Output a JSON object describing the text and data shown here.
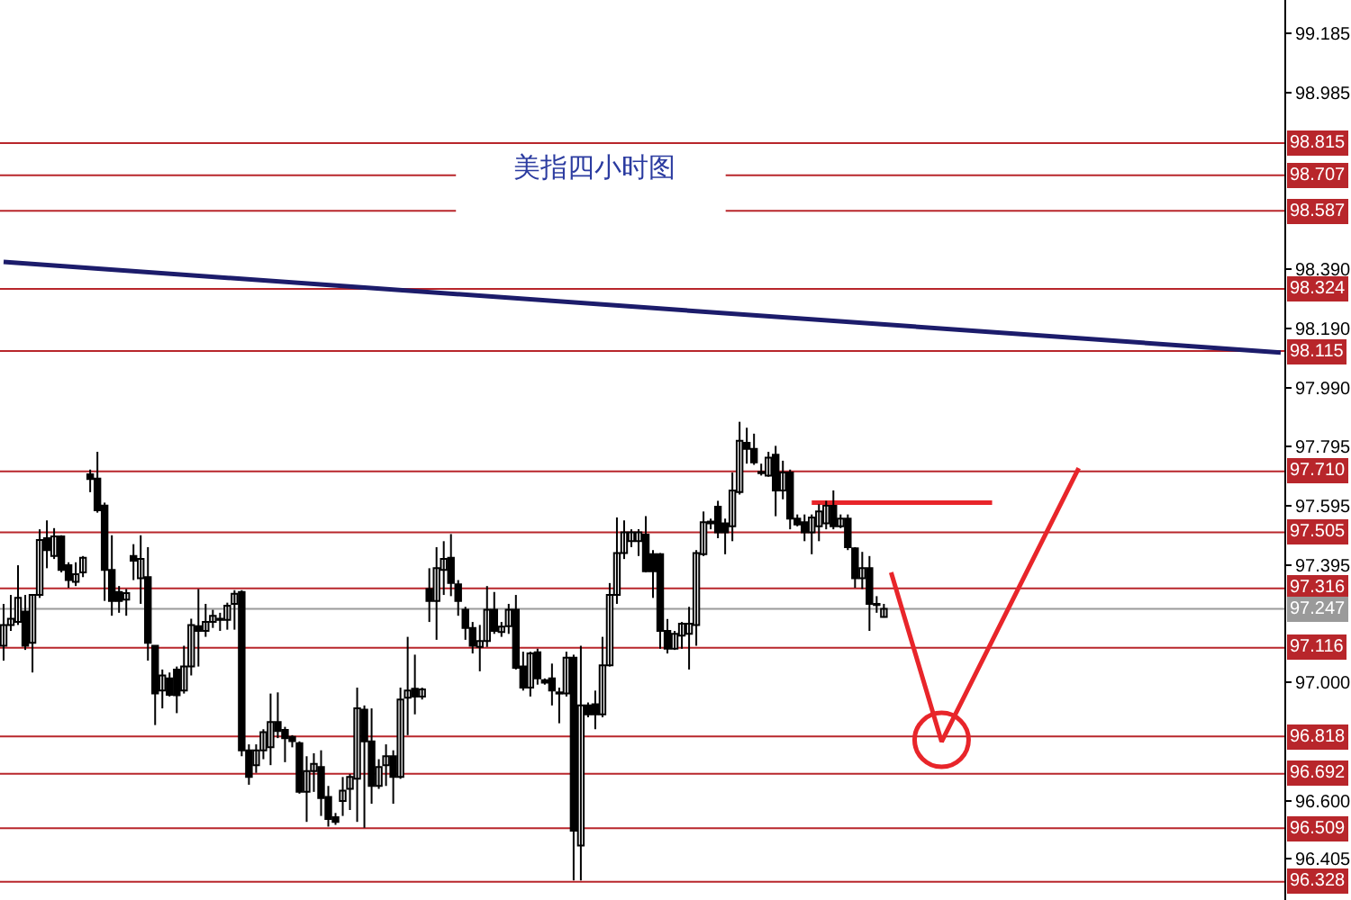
{
  "chart_data": {
    "type": "candlestick",
    "title": "美指四小时图",
    "categories": [
      null,
      null,
      null,
      null,
      null,
      null,
      null,
      null,
      null,
      null,
      null,
      null,
      null,
      null,
      null,
      null,
      null,
      null,
      null,
      null,
      null,
      null,
      null,
      null,
      null,
      null,
      null,
      null,
      null,
      null,
      null,
      null,
      null,
      null,
      null,
      null,
      null,
      null,
      null,
      null,
      null,
      null,
      null,
      null,
      null,
      null,
      null,
      null,
      null,
      null,
      null,
      null,
      null,
      null,
      null,
      null,
      null,
      null,
      null,
      null,
      null,
      null,
      null,
      null,
      null,
      null,
      null,
      null,
      null,
      null,
      null,
      null,
      null,
      null,
      null,
      null,
      null,
      null,
      null,
      null,
      null,
      null,
      null,
      null,
      null,
      null,
      null,
      null,
      null,
      null,
      null,
      null,
      null,
      null,
      null,
      null,
      null,
      null,
      null,
      null,
      null,
      null,
      null,
      null,
      null,
      null,
      null,
      null,
      null,
      null,
      null,
      null,
      null,
      null,
      null,
      null,
      null,
      null,
      null,
      null,
      null,
      null,
      null,
      null,
      null,
      null,
      null,
      null,
      null,
      null,
      null,
      null,
      null,
      null,
      null,
      null,
      null,
      null,
      null,
      null,
      null,
      null,
      null,
      null,
      null,
      null,
      null,
      null,
      null,
      null,
      null,
      null,
      null,
      null,
      null,
      null,
      null,
      null,
      null,
      null,
      null,
      null,
      null,
      null,
      null,
      null,
      null,
      null,
      null,
      null,
      null,
      null,
      null,
      null,
      null,
      null,
      null,
      null
    ],
    "ohlc": [
      [
        97.123,
        97.264,
        97.073,
        97.193
      ],
      [
        97.193,
        97.294,
        97.173,
        97.214
      ],
      [
        97.203,
        97.394,
        97.193,
        97.284
      ],
      [
        97.238,
        97.294,
        97.109,
        97.123
      ],
      [
        97.133,
        97.294,
        97.033,
        97.294
      ],
      [
        97.294,
        97.515,
        97.284,
        97.479
      ],
      [
        97.485,
        97.545,
        97.384,
        97.445
      ],
      [
        97.425,
        97.519,
        97.415,
        97.491
      ],
      [
        97.491,
        97.495,
        97.37,
        97.378
      ],
      [
        97.394,
        97.404,
        97.318,
        97.344
      ],
      [
        97.338,
        97.404,
        97.324,
        97.364
      ],
      [
        97.37,
        97.425,
        97.354,
        97.419
      ],
      [
        97.7,
        97.716,
        97.64,
        97.684
      ],
      [
        97.686,
        97.776,
        97.571,
        97.579
      ],
      [
        97.595,
        97.605,
        97.274,
        97.378
      ],
      [
        97.378,
        97.495,
        97.224,
        97.274
      ],
      [
        97.304,
        97.324,
        97.234,
        97.274
      ],
      [
        97.278,
        97.314,
        97.224,
        97.3
      ],
      [
        97.425,
        97.465,
        97.344,
        97.409
      ],
      [
        97.35,
        97.495,
        97.264,
        97.415
      ],
      [
        97.354,
        97.455,
        97.073,
        97.133
      ],
      [
        97.123,
        97.123,
        96.856,
        96.962
      ],
      [
        96.972,
        97.043,
        96.912,
        97.023
      ],
      [
        97.013,
        97.033,
        96.952,
        96.958
      ],
      [
        97.043,
        97.053,
        96.896,
        96.956
      ],
      [
        96.972,
        97.123,
        96.962,
        97.053
      ],
      [
        97.053,
        97.214,
        97.023,
        97.193
      ],
      [
        97.189,
        97.314,
        97.053,
        97.173
      ],
      [
        97.173,
        97.264,
        97.153,
        97.203
      ],
      [
        97.203,
        97.244,
        97.183,
        97.224
      ],
      [
        97.21,
        97.234,
        97.173,
        97.214
      ],
      [
        97.21,
        97.268,
        97.177,
        97.258
      ],
      [
        97.264,
        97.31,
        97.177,
        97.298
      ],
      [
        97.304,
        97.31,
        96.751,
        96.771
      ],
      [
        96.771,
        96.791,
        96.655,
        96.681
      ],
      [
        96.721,
        96.791,
        96.695,
        96.771
      ],
      [
        96.771,
        96.842,
        96.741,
        96.832
      ],
      [
        96.781,
        96.962,
        96.721,
        96.866
      ],
      [
        96.866,
        96.966,
        96.812,
        96.836
      ],
      [
        96.84,
        96.85,
        96.731,
        96.812
      ],
      [
        96.816,
        96.822,
        96.781,
        96.802
      ],
      [
        96.795,
        96.801,
        96.625,
        96.631
      ],
      [
        96.631,
        96.751,
        96.53,
        96.701
      ],
      [
        96.701,
        96.761,
        96.631,
        96.725
      ],
      [
        96.715,
        96.771,
        96.55,
        96.61
      ],
      [
        96.614,
        96.651,
        96.514,
        96.54
      ],
      [
        96.546,
        96.56,
        96.52,
        96.53
      ],
      [
        96.6,
        96.681,
        96.55,
        96.635
      ],
      [
        96.641,
        96.691,
        96.57,
        96.681
      ],
      [
        96.675,
        96.982,
        96.53,
        96.912
      ],
      [
        96.908,
        96.922,
        96.51,
        96.801
      ],
      [
        96.801,
        96.912,
        96.591,
        96.651
      ],
      [
        96.651,
        96.741,
        96.641,
        96.715
      ],
      [
        96.721,
        96.791,
        96.651,
        96.751
      ],
      [
        96.751,
        96.771,
        96.591,
        96.681
      ],
      [
        96.681,
        96.982,
        96.675,
        96.942
      ],
      [
        96.948,
        97.153,
        96.822,
        96.972
      ],
      [
        96.978,
        97.093,
        96.892,
        96.952
      ],
      [
        96.952,
        96.982,
        96.942,
        96.976
      ],
      [
        97.314,
        97.384,
        97.203,
        97.274
      ],
      [
        97.274,
        97.455,
        97.143,
        97.384
      ],
      [
        97.378,
        97.475,
        97.294,
        97.415
      ],
      [
        97.419,
        97.499,
        97.29,
        97.334
      ],
      [
        97.33,
        97.344,
        97.224,
        97.274
      ],
      [
        97.244,
        97.254,
        97.143,
        97.183
      ],
      [
        97.183,
        97.203,
        97.097,
        97.123
      ],
      [
        97.119,
        97.193,
        97.037,
        97.139
      ],
      [
        97.139,
        97.324,
        97.119,
        97.244
      ],
      [
        97.244,
        97.304,
        97.163,
        97.173
      ],
      [
        97.169,
        97.203,
        97.153,
        97.187
      ],
      [
        97.189,
        97.264,
        97.163,
        97.244
      ],
      [
        97.244,
        97.294,
        97.043,
        97.049
      ],
      [
        97.053,
        97.103,
        96.972,
        96.982
      ],
      [
        96.982,
        97.103,
        96.952,
        97.097
      ],
      [
        97.101,
        97.113,
        96.992,
        97.013
      ],
      [
        97.007,
        97.013,
        96.992,
        96.999
      ],
      [
        97.013,
        97.063,
        96.922,
        96.972
      ],
      [
        96.966,
        96.982,
        96.862,
        96.962
      ],
      [
        96.962,
        97.103,
        96.952,
        97.083
      ],
      [
        97.083,
        97.093,
        96.333,
        96.5
      ],
      [
        96.45,
        97.123,
        96.333,
        96.922
      ],
      [
        96.922,
        96.932,
        96.882,
        96.892
      ],
      [
        96.926,
        96.972,
        96.842,
        96.892
      ],
      [
        96.892,
        97.153,
        96.882,
        97.057
      ],
      [
        97.057,
        97.334,
        97.053,
        97.294
      ],
      [
        97.294,
        97.555,
        97.264,
        97.435
      ],
      [
        97.435,
        97.545,
        97.415,
        97.505
      ],
      [
        97.475,
        97.515,
        97.455,
        97.505
      ],
      [
        97.475,
        97.515,
        97.425,
        97.505
      ],
      [
        97.497,
        97.559,
        97.37,
        97.374
      ],
      [
        97.431,
        97.445,
        97.284,
        97.374
      ],
      [
        97.431,
        97.435,
        97.113,
        97.173
      ],
      [
        97.173,
        97.213,
        97.097,
        97.113
      ],
      [
        97.113,
        97.173,
        97.109,
        97.163
      ],
      [
        97.157,
        97.203,
        97.113,
        97.197
      ],
      [
        97.163,
        97.254,
        97.043,
        97.197
      ],
      [
        97.193,
        97.445,
        97.123,
        97.435
      ],
      [
        97.431,
        97.575,
        97.425,
        97.539
      ],
      [
        97.535,
        97.551,
        97.515,
        97.541
      ],
      [
        97.591,
        97.611,
        97.485,
        97.505
      ],
      [
        97.535,
        97.551,
        97.431,
        97.505
      ],
      [
        97.525,
        97.706,
        97.475,
        97.646
      ],
      [
        97.64,
        97.877,
        97.632,
        97.813
      ],
      [
        97.806,
        97.857,
        97.736,
        97.786
      ],
      [
        97.786,
        97.837,
        97.732,
        97.74
      ],
      [
        97.708,
        97.736,
        97.696,
        97.704
      ],
      [
        97.696,
        97.776,
        97.692,
        97.756
      ],
      [
        97.766,
        97.796,
        97.559,
        97.646
      ],
      [
        97.646,
        97.746,
        97.616,
        97.706
      ],
      [
        97.706,
        97.716,
        97.515,
        97.551
      ],
      [
        97.551,
        97.565,
        97.525,
        97.531
      ],
      [
        97.539,
        97.565,
        97.475,
        97.505
      ],
      [
        97.505,
        97.565,
        97.431,
        97.555
      ],
      [
        97.525,
        97.599,
        97.475,
        97.575
      ],
      [
        97.535,
        97.611,
        97.515,
        97.595
      ],
      [
        97.595,
        97.646,
        97.515,
        97.525
      ],
      [
        97.525,
        97.565,
        97.519,
        97.551
      ],
      [
        97.551,
        97.565,
        97.445,
        97.455
      ],
      [
        97.451,
        97.455,
        97.318,
        97.35
      ],
      [
        97.35,
        97.439,
        97.314,
        97.384
      ],
      [
        97.384,
        97.425,
        97.173,
        97.264
      ],
      [
        97.264,
        97.29,
        97.234,
        97.26
      ],
      [
        97.22,
        97.264,
        97.218,
        97.247
      ],
      null,
      null,
      null,
      null,
      null,
      null,
      null,
      null,
      null,
      null,
      null,
      null,
      null,
      null,
      null,
      null,
      null,
      null,
      null,
      null,
      null,
      null,
      null,
      null,
      null,
      null,
      null,
      null,
      null,
      null,
      null,
      null,
      null,
      null,
      null,
      null,
      null,
      null,
      null,
      null,
      null,
      null,
      null,
      null,
      null,
      null,
      null,
      null,
      null,
      null,
      null,
      null,
      null,
      null,
      null
    ],
    "series": [
      {
        "type": "line",
        "color": "#1c1c6b",
        "values": [
          98.415,
          null,
          null,
          null,
          null,
          null,
          null,
          null,
          null,
          null,
          null,
          null,
          null,
          null,
          null,
          null,
          null,
          null,
          null,
          null,
          null,
          null,
          null,
          null,
          null,
          null,
          null,
          null,
          null,
          null,
          null,
          null,
          null,
          null,
          null,
          null,
          null,
          null,
          null,
          null,
          null,
          null,
          null,
          null,
          null,
          null,
          null,
          null,
          null,
          null,
          null,
          null,
          null,
          null,
          null,
          null,
          null,
          null,
          null,
          null,
          null,
          null,
          null,
          null,
          null,
          null,
          null,
          null,
          null,
          null,
          null,
          null,
          null,
          null,
          null,
          null,
          null,
          null,
          null,
          null,
          null,
          null,
          null,
          null,
          null,
          null,
          null,
          null,
          null,
          null,
          null,
          null,
          null,
          null,
          null,
          null,
          null,
          null,
          null,
          null,
          null,
          null,
          null,
          null,
          null,
          null,
          null,
          null,
          null,
          null,
          null,
          null,
          null,
          null,
          null,
          null,
          null,
          null,
          null,
          null,
          null,
          null,
          null,
          null,
          null,
          null,
          null,
          null,
          null,
          null,
          null,
          null,
          null,
          null,
          null,
          null,
          null,
          null,
          null,
          null,
          null,
          null,
          null,
          null,
          null,
          null,
          null,
          null,
          null,
          null,
          null,
          null,
          null,
          null,
          null,
          null,
          null,
          null,
          null,
          null,
          null,
          null,
          null,
          null,
          null,
          null,
          null,
          null,
          null,
          null,
          null,
          null,
          null,
          null,
          null,
          null,
          null,
          98.11
        ]
      },
      {
        "type": "line",
        "color": "#e8252a",
        "values": [
          null,
          null,
          null,
          null,
          null,
          null,
          null,
          null,
          null,
          null,
          null,
          null,
          null,
          null,
          null,
          null,
          null,
          null,
          null,
          null,
          null,
          null,
          null,
          null,
          null,
          null,
          null,
          null,
          null,
          null,
          null,
          null,
          null,
          null,
          null,
          null,
          null,
          null,
          null,
          null,
          null,
          null,
          null,
          null,
          null,
          null,
          null,
          null,
          null,
          null,
          null,
          null,
          null,
          null,
          null,
          null,
          null,
          null,
          null,
          null,
          null,
          null,
          null,
          null,
          null,
          null,
          null,
          null,
          null,
          null,
          null,
          null,
          null,
          null,
          null,
          null,
          null,
          null,
          null,
          null,
          null,
          null,
          null,
          null,
          null,
          null,
          null,
          null,
          null,
          null,
          null,
          null,
          null,
          null,
          null,
          null,
          null,
          null,
          null,
          null,
          null,
          null,
          null,
          null,
          null,
          null,
          null,
          null,
          null,
          null,
          null,
          null,
          97.605,
          null,
          null,
          null,
          null,
          null,
          null,
          null,
          null,
          null,
          null,
          null,
          null,
          null,
          null,
          null,
          null,
          null,
          null,
          null,
          null,
          null,
          null,
          null,
          null,
          97.605,
          null,
          null,
          null,
          null,
          null,
          null,
          null,
          null,
          null,
          null,
          null,
          null,
          null,
          null,
          null,
          null,
          null,
          null,
          null,
          null,
          null,
          null,
          null,
          null,
          null,
          null,
          null,
          null,
          null,
          null,
          null,
          null,
          null,
          null,
          null,
          null,
          null,
          null,
          null,
          null
        ]
      },
      {
        "type": "line",
        "color": "#e8252a",
        "values": [
          null,
          null,
          null,
          null,
          null,
          null,
          null,
          null,
          null,
          null,
          null,
          null,
          null,
          null,
          null,
          null,
          null,
          null,
          null,
          null,
          null,
          null,
          null,
          null,
          null,
          null,
          null,
          null,
          null,
          null,
          null,
          null,
          null,
          null,
          null,
          null,
          null,
          null,
          null,
          null,
          null,
          null,
          null,
          null,
          null,
          null,
          null,
          null,
          null,
          null,
          null,
          null,
          null,
          null,
          null,
          null,
          null,
          null,
          null,
          null,
          null,
          null,
          null,
          null,
          null,
          null,
          null,
          null,
          null,
          null,
          null,
          null,
          null,
          null,
          null,
          null,
          null,
          null,
          null,
          null,
          null,
          null,
          null,
          null,
          null,
          null,
          null,
          null,
          null,
          null,
          null,
          null,
          null,
          null,
          null,
          null,
          null,
          null,
          null,
          null,
          null,
          null,
          null,
          null,
          null,
          null,
          null,
          null,
          null,
          null,
          null,
          null,
          null,
          null,
          null,
          null,
          null,
          null,
          null,
          null,
          null,
          null,
          null,
          97.37,
          null,
          null,
          null,
          null,
          null,
          null,
          96.8,
          null,
          null,
          null,
          null,
          null,
          null,
          null,
          null,
          null,
          null,
          null,
          null,
          null,
          null,
          null,
          null,
          null,
          null,
          97.721,
          null,
          null,
          null,
          null,
          null,
          null,
          null,
          null,
          null,
          null,
          null,
          null,
          null,
          null,
          null,
          null,
          null,
          null,
          null,
          null,
          null,
          null,
          null,
          null,
          null,
          null,
          null,
          null
        ]
      },
      {
        "type": "scatter",
        "color": "#e8252a",
        "marker": "circle",
        "values": [
          null,
          null,
          null,
          null,
          null,
          null,
          null,
          null,
          null,
          null,
          null,
          null,
          null,
          null,
          null,
          null,
          null,
          null,
          null,
          null,
          null,
          null,
          null,
          null,
          null,
          null,
          null,
          null,
          null,
          null,
          null,
          null,
          null,
          null,
          null,
          null,
          null,
          null,
          null,
          null,
          null,
          null,
          null,
          null,
          null,
          null,
          null,
          null,
          null,
          null,
          null,
          null,
          null,
          null,
          null,
          null,
          null,
          null,
          null,
          null,
          null,
          null,
          null,
          null,
          null,
          null,
          null,
          null,
          null,
          null,
          null,
          null,
          null,
          null,
          null,
          null,
          null,
          null,
          null,
          null,
          null,
          null,
          null,
          null,
          null,
          null,
          null,
          null,
          null,
          null,
          null,
          null,
          null,
          null,
          null,
          null,
          null,
          null,
          null,
          null,
          null,
          null,
          null,
          null,
          null,
          null,
          null,
          null,
          null,
          null,
          null,
          null,
          null,
          null,
          null,
          null,
          null,
          null,
          null,
          null,
          null,
          null,
          null,
          null,
          null,
          null,
          null,
          null,
          null,
          null,
          96.806,
          null,
          null,
          null,
          null,
          null,
          null,
          null,
          null,
          null,
          null,
          null,
          null,
          null,
          null,
          null,
          null,
          null,
          null,
          null,
          null,
          null,
          null,
          null,
          null,
          null,
          null,
          null,
          null,
          null,
          null,
          null,
          null,
          null,
          null,
          null,
          null,
          null,
          null,
          null,
          null,
          null,
          null,
          null,
          null,
          null,
          null,
          null
        ]
      }
    ],
    "ylim": [
      96.267,
      99.297
    ],
    "yticks": [
      96.405,
      {
        "value": 96.6,
        "label": "96.600"
      },
      {
        "value": 97.0,
        "label": "97.000"
      },
      97.395,
      97.595,
      97.795,
      {
        "value": 97.99,
        "label": "97.990"
      },
      {
        "value": 98.19,
        "label": "98.190"
      },
      {
        "value": 98.39,
        "label": "98.390"
      },
      98.985,
      99.185
    ],
    "ref_lines": [
      {
        "axis": "y",
        "value": 98.815,
        "label": "98.815",
        "color": "#b8262b"
      },
      {
        "axis": "y",
        "value": 98.707,
        "label": "98.707",
        "color": "#b8262b"
      },
      {
        "axis": "y",
        "value": 98.587,
        "label": "98.587",
        "color": "#b8262b"
      },
      {
        "axis": "y",
        "value": 98.324,
        "label": "98.324",
        "color": "#b8262b"
      },
      {
        "axis": "y",
        "value": 98.115,
        "label": "98.115",
        "color": "#b8262b"
      },
      {
        "axis": "y",
        "value": 97.71,
        "label": "97.710",
        "color": "#b8262b"
      },
      {
        "axis": "y",
        "value": 97.505,
        "label": "97.505",
        "color": "#b8262b"
      },
      {
        "axis": "y",
        "value": 97.316,
        "label": "97.316",
        "color": "#b8262b"
      },
      {
        "axis": "y",
        "value": 97.247,
        "label": "97.247",
        "color": "#9a9a9a"
      },
      {
        "axis": "y",
        "value": 97.116,
        "label": "97.116",
        "color": "#b8262b"
      },
      {
        "axis": "y",
        "value": 96.818,
        "label": "96.818",
        "color": "#b8262b"
      },
      {
        "axis": "y",
        "value": 96.692,
        "label": "96.692",
        "color": "#b8262b"
      },
      {
        "axis": "y",
        "value": 96.509,
        "label": "96.509",
        "color": "#b8262b"
      },
      {
        "axis": "y",
        "value": 96.328,
        "label": "96.328",
        "color": "#b8262b"
      }
    ],
    "grid": false
  }
}
